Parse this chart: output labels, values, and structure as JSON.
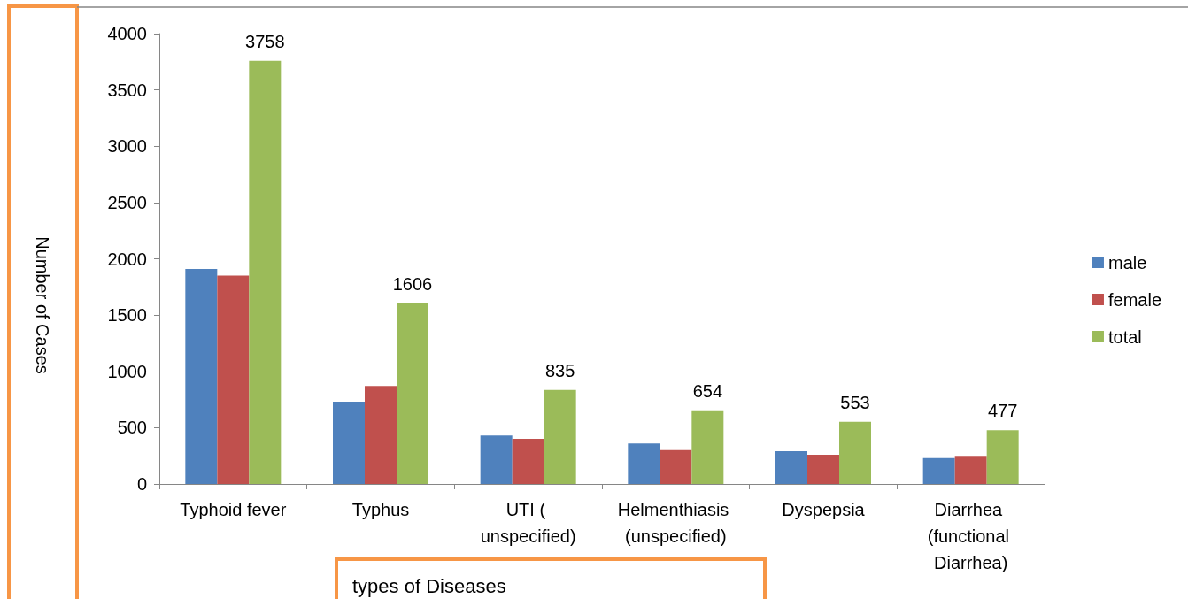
{
  "chart_data": {
    "type": "bar",
    "xlabel": "types of Diseases",
    "ylabel": "Number of Cases",
    "categories": [
      "Typhoid fever",
      "Typhus",
      "UTI ( unspecified)",
      "Helmenthiasis (unspecified)",
      "Dyspepsia",
      "Diarrhea (functional Diarrhea)"
    ],
    "series": [
      {
        "name": "male",
        "color": "#4f81bd",
        "values": [
          1910,
          730,
          430,
          360,
          290,
          230
        ]
      },
      {
        "name": "female",
        "color": "#c0504d",
        "values": [
          1850,
          870,
          400,
          300,
          260,
          250
        ]
      },
      {
        "name": "total",
        "color": "#9bbb59",
        "values": [
          3758,
          1606,
          835,
          654,
          553,
          477
        ],
        "value_labels": [
          "3758",
          "1606",
          "835",
          "654",
          "553",
          "477"
        ]
      }
    ],
    "ylim": [
      0,
      4000
    ],
    "yticks": [
      0,
      500,
      1000,
      1500,
      2000,
      2500,
      3000,
      3500,
      4000
    ],
    "grid": false,
    "legend": "right"
  }
}
